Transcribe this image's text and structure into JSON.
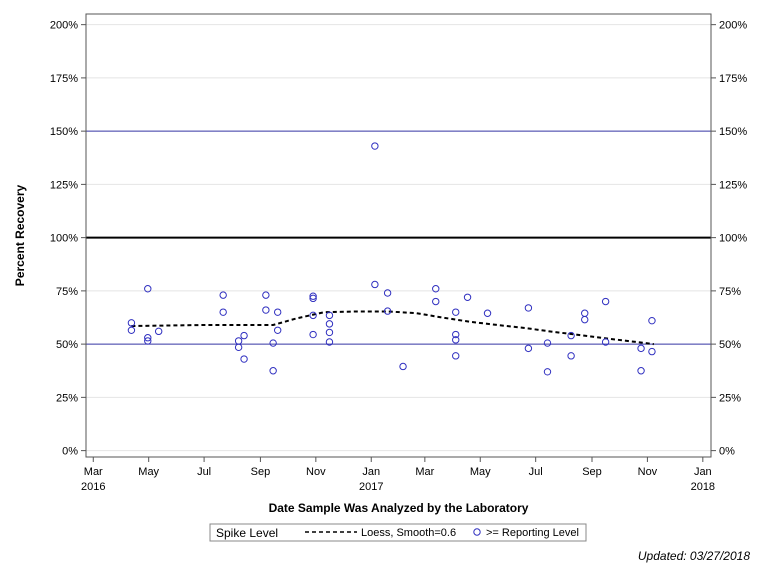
{
  "chart_data": {
    "type": "scatter",
    "xlabel": "Date Sample Was Analyzed by the Laboratory",
    "ylabel": "Percent Recovery",
    "x_range": [
      "2016-02-22",
      "2018-01-10"
    ],
    "ylim": [
      -3,
      205
    ],
    "y_ticks": [
      0,
      25,
      50,
      75,
      100,
      125,
      150,
      175,
      200
    ],
    "y_tick_labels": [
      "0%",
      "25%",
      "50%",
      "75%",
      "100%",
      "125%",
      "150%",
      "175%",
      "200%"
    ],
    "x_ticks": [
      {
        "date": "2016-03-01",
        "label": "Mar",
        "year": "2016"
      },
      {
        "date": "2016-05-01",
        "label": "May",
        "year": ""
      },
      {
        "date": "2016-07-01",
        "label": "Jul",
        "year": ""
      },
      {
        "date": "2016-09-01",
        "label": "Sep",
        "year": ""
      },
      {
        "date": "2016-11-01",
        "label": "Nov",
        "year": ""
      },
      {
        "date": "2017-01-01",
        "label": "Jan",
        "year": "2017"
      },
      {
        "date": "2017-03-01",
        "label": "Mar",
        "year": ""
      },
      {
        "date": "2017-05-01",
        "label": "May",
        "year": ""
      },
      {
        "date": "2017-07-01",
        "label": "Jul",
        "year": ""
      },
      {
        "date": "2017-09-01",
        "label": "Sep",
        "year": ""
      },
      {
        "date": "2017-11-01",
        "label": "Nov",
        "year": ""
      },
      {
        "date": "2018-01-01",
        "label": "Jan",
        "year": "2018"
      }
    ],
    "reference_lines": [
      {
        "y": 150,
        "color": "#3a3aa8",
        "width": 1
      },
      {
        "y": 100,
        "color": "#000000",
        "width": 2
      },
      {
        "y": 50,
        "color": "#3a3aa8",
        "width": 1
      }
    ],
    "grid": true,
    "legend_position": "bottom",
    "legend": {
      "title": "Spike Level",
      "entries": [
        {
          "label": "Loess, Smooth=0.6",
          "style": "dashed-line",
          "color": "#000000"
        },
        {
          "label": ">= Reporting Level",
          "style": "circle-marker",
          "color": "#3030c0"
        }
      ]
    },
    "series": [
      {
        "name": ">= Reporting Level",
        "marker_color": "#3030c0",
        "points": [
          {
            "x": "2016-04-12",
            "y": 60
          },
          {
            "x": "2016-04-12",
            "y": 56.5
          },
          {
            "x": "2016-04-30",
            "y": 76
          },
          {
            "x": "2016-04-30",
            "y": 53
          },
          {
            "x": "2016-04-30",
            "y": 51.5
          },
          {
            "x": "2016-05-12",
            "y": 56
          },
          {
            "x": "2016-07-22",
            "y": 73
          },
          {
            "x": "2016-07-22",
            "y": 65
          },
          {
            "x": "2016-08-08",
            "y": 51.5
          },
          {
            "x": "2016-08-08",
            "y": 48.5
          },
          {
            "x": "2016-08-14",
            "y": 54
          },
          {
            "x": "2016-08-14",
            "y": 43
          },
          {
            "x": "2016-09-07",
            "y": 73
          },
          {
            "x": "2016-09-07",
            "y": 66
          },
          {
            "x": "2016-09-15",
            "y": 50.5
          },
          {
            "x": "2016-09-15",
            "y": 37.5
          },
          {
            "x": "2016-09-20",
            "y": 65
          },
          {
            "x": "2016-09-20",
            "y": 56.5
          },
          {
            "x": "2016-10-29",
            "y": 72.5
          },
          {
            "x": "2016-10-29",
            "y": 71.5
          },
          {
            "x": "2016-10-29",
            "y": 63.5
          },
          {
            "x": "2016-10-29",
            "y": 54.5
          },
          {
            "x": "2016-11-16",
            "y": 63.5
          },
          {
            "x": "2016-11-16",
            "y": 59.5
          },
          {
            "x": "2016-11-16",
            "y": 55.5
          },
          {
            "x": "2016-11-16",
            "y": 51
          },
          {
            "x": "2017-01-05",
            "y": 143
          },
          {
            "x": "2017-01-05",
            "y": 78
          },
          {
            "x": "2017-01-19",
            "y": 74
          },
          {
            "x": "2017-01-19",
            "y": 65.5
          },
          {
            "x": "2017-02-05",
            "y": 39.5
          },
          {
            "x": "2017-03-13",
            "y": 76
          },
          {
            "x": "2017-03-13",
            "y": 70
          },
          {
            "x": "2017-04-04",
            "y": 65
          },
          {
            "x": "2017-04-04",
            "y": 54.5
          },
          {
            "x": "2017-04-04",
            "y": 52
          },
          {
            "x": "2017-04-04",
            "y": 44.5
          },
          {
            "x": "2017-04-17",
            "y": 72
          },
          {
            "x": "2017-05-09",
            "y": 64.5
          },
          {
            "x": "2017-06-23",
            "y": 67
          },
          {
            "x": "2017-06-23",
            "y": 48
          },
          {
            "x": "2017-07-14",
            "y": 50.5
          },
          {
            "x": "2017-07-14",
            "y": 37
          },
          {
            "x": "2017-08-09",
            "y": 54
          },
          {
            "x": "2017-08-09",
            "y": 44.5
          },
          {
            "x": "2017-08-24",
            "y": 64.5
          },
          {
            "x": "2017-08-24",
            "y": 61.5
          },
          {
            "x": "2017-09-16",
            "y": 70
          },
          {
            "x": "2017-09-16",
            "y": 51
          },
          {
            "x": "2017-10-25",
            "y": 48
          },
          {
            "x": "2017-10-25",
            "y": 37.5
          },
          {
            "x": "2017-11-06",
            "y": 61
          },
          {
            "x": "2017-11-06",
            "y": 46.5
          }
        ]
      },
      {
        "name": "Loess, Smooth=0.6",
        "line_style": "dashed",
        "points": [
          {
            "x": "2016-04-12",
            "y": 58.5
          },
          {
            "x": "2016-05-15",
            "y": 58.7
          },
          {
            "x": "2016-07-01",
            "y": 59
          },
          {
            "x": "2016-08-15",
            "y": 59
          },
          {
            "x": "2016-09-15",
            "y": 59
          },
          {
            "x": "2016-10-10",
            "y": 62
          },
          {
            "x": "2016-11-10",
            "y": 65
          },
          {
            "x": "2016-12-15",
            "y": 65.3
          },
          {
            "x": "2017-01-20",
            "y": 65.3
          },
          {
            "x": "2017-02-20",
            "y": 64.5
          },
          {
            "x": "2017-03-20",
            "y": 62.5
          },
          {
            "x": "2017-04-20",
            "y": 60.5
          },
          {
            "x": "2017-05-20",
            "y": 59
          },
          {
            "x": "2017-06-20",
            "y": 57.5
          },
          {
            "x": "2017-07-20",
            "y": 55.8
          },
          {
            "x": "2017-08-20",
            "y": 54.2
          },
          {
            "x": "2017-09-20",
            "y": 52.5
          },
          {
            "x": "2017-10-20",
            "y": 51
          },
          {
            "x": "2017-11-08",
            "y": 50
          }
        ]
      }
    ]
  },
  "footer": {
    "updated": "Updated: 03/27/2018"
  }
}
